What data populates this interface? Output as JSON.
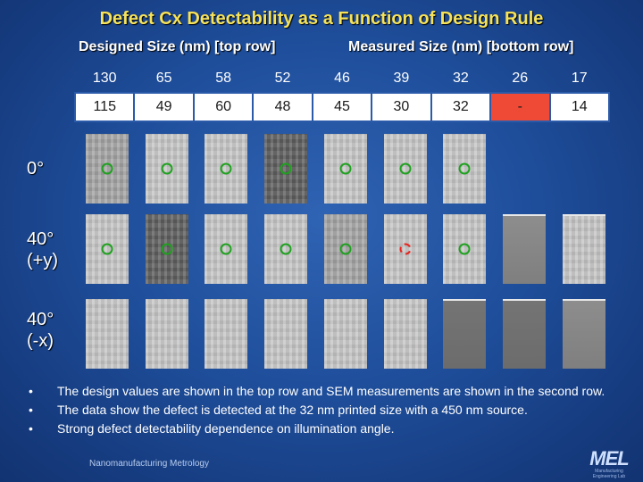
{
  "slide": {
    "title": "Defect Cx Detectability as a Function of Design Rule",
    "designed_header": "Designed Size (nm) [top row]",
    "measured_header": "Measured Size (nm) [bottom row]",
    "designed_sizes": [
      "130",
      "65",
      "58",
      "52",
      "46",
      "39",
      "32",
      "26",
      "17"
    ],
    "measured_sizes": [
      "115",
      "49",
      "60",
      "48",
      "45",
      "30",
      "32",
      "-",
      "14"
    ],
    "angles": [
      {
        "line1": "0°",
        "line2": ""
      },
      {
        "line1": "40°",
        "line2": "(+y)"
      },
      {
        "line1": "40°",
        "line2": "(-x)"
      }
    ],
    "bullets": [
      "The design values are shown in the top row and SEM measurements are shown in the second row.",
      "The data show the defect is detected at the 32 nm printed size with a 450 nm source.",
      "Strong defect detectability dependence on illumination angle."
    ],
    "bullet_symbol": "•",
    "footer": "Nanomanufacturing Metrology",
    "logo_text": "MEL",
    "logo_subtext": "Manufacturing Engineering Lab",
    "colors": {
      "title": "#f5e25a",
      "detected_marker": "#1fa11f",
      "missed_marker": "#e8231e",
      "missed_cell": "#ef4a36"
    }
  }
}
